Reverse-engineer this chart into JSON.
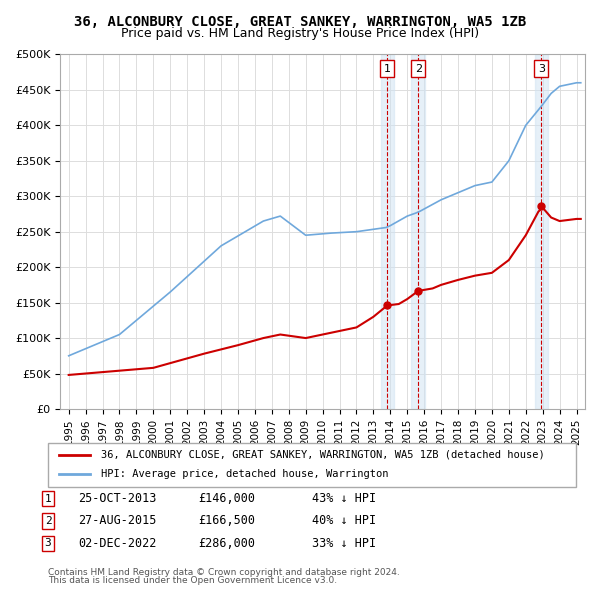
{
  "title": "36, ALCONBURY CLOSE, GREAT SANKEY, WARRINGTON, WA5 1ZB",
  "subtitle": "Price paid vs. HM Land Registry's House Price Index (HPI)",
  "sale_dates": [
    2013.82,
    2015.65,
    2022.92
  ],
  "sale_prices": [
    146000,
    166500,
    286000
  ],
  "sale_labels": [
    "1",
    "2",
    "3"
  ],
  "sale_info": [
    {
      "label": "1",
      "date": "25-OCT-2013",
      "price": "£146,000",
      "hpi": "43% ↓ HPI"
    },
    {
      "label": "2",
      "date": "27-AUG-2015",
      "price": "£166,500",
      "hpi": "40% ↓ HPI"
    },
    {
      "label": "3",
      "date": "02-DEC-2022",
      "price": "£286,000",
      "hpi": "33% ↓ HPI"
    }
  ],
  "hpi_line_color": "#6fa8dc",
  "sale_line_color": "#cc0000",
  "vline_color": "#cc0000",
  "highlight_color": "#cfe2f3",
  "ylim": [
    0,
    500000
  ],
  "xlim": [
    1994.5,
    2025.5
  ],
  "legend_property": "36, ALCONBURY CLOSE, GREAT SANKEY, WARRINGTON, WA5 1ZB (detached house)",
  "legend_hpi": "HPI: Average price, detached house, Warrington",
  "footer1": "Contains HM Land Registry data © Crown copyright and database right 2024.",
  "footer2": "This data is licensed under the Open Government Licence v3.0.",
  "hpi_anchors": [
    [
      1995.0,
      75000
    ],
    [
      1998.0,
      105000
    ],
    [
      2001.0,
      165000
    ],
    [
      2004.0,
      230000
    ],
    [
      2006.5,
      265000
    ],
    [
      2007.5,
      272000
    ],
    [
      2009.0,
      245000
    ],
    [
      2010.5,
      248000
    ],
    [
      2012.0,
      250000
    ],
    [
      2013.82,
      256140
    ],
    [
      2015.0,
      272000
    ],
    [
      2015.65,
      277500
    ],
    [
      2017.0,
      295000
    ],
    [
      2018.0,
      305000
    ],
    [
      2019.0,
      315000
    ],
    [
      2020.0,
      320000
    ],
    [
      2021.0,
      350000
    ],
    [
      2022.0,
      400000
    ],
    [
      2022.92,
      426866
    ],
    [
      2023.5,
      445000
    ],
    [
      2024.0,
      455000
    ],
    [
      2025.0,
      460000
    ]
  ],
  "red_anchors": [
    [
      1995.0,
      48000
    ],
    [
      1997.0,
      52000
    ],
    [
      2000.0,
      58000
    ],
    [
      2003.0,
      78000
    ],
    [
      2005.0,
      90000
    ],
    [
      2006.5,
      100000
    ],
    [
      2007.5,
      105000
    ],
    [
      2009.0,
      100000
    ],
    [
      2010.0,
      105000
    ],
    [
      2012.0,
      115000
    ],
    [
      2013.0,
      130000
    ],
    [
      2013.82,
      146000
    ],
    [
      2014.5,
      148000
    ],
    [
      2015.0,
      155000
    ],
    [
      2015.65,
      166500
    ],
    [
      2016.5,
      170000
    ],
    [
      2017.0,
      175000
    ],
    [
      2018.0,
      182000
    ],
    [
      2019.0,
      188000
    ],
    [
      2020.0,
      192000
    ],
    [
      2021.0,
      210000
    ],
    [
      2022.0,
      245000
    ],
    [
      2022.92,
      286000
    ],
    [
      2023.5,
      270000
    ],
    [
      2024.0,
      265000
    ],
    [
      2025.0,
      268000
    ]
  ]
}
